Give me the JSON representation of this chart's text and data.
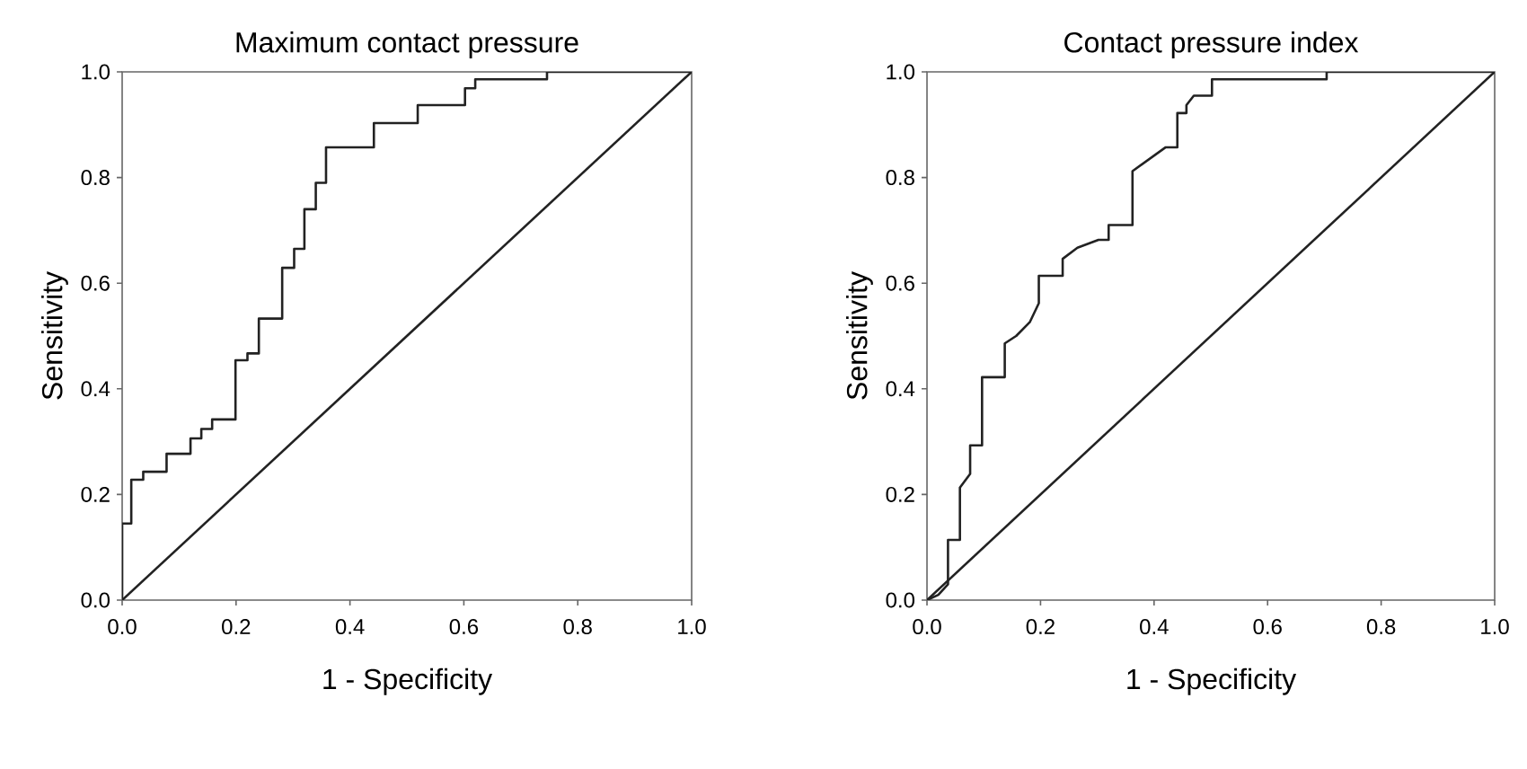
{
  "chart_data": [
    {
      "type": "line",
      "title": "Maximum contact pressure",
      "xlabel": "1 - Specificity",
      "ylabel": "Sensitivity",
      "xlim": [
        0,
        1
      ],
      "ylim": [
        0,
        1
      ],
      "xticks": [
        {
          "value": 0,
          "label": "0.0"
        },
        {
          "value": 0.2,
          "label": "0.2"
        },
        {
          "value": 0.4,
          "label": "0.4"
        },
        {
          "value": 0.6,
          "label": "0.6"
        },
        {
          "value": 0.8,
          "label": "0.8"
        },
        {
          "value": 1,
          "label": "1.0"
        }
      ],
      "yticks": [
        {
          "value": 0,
          "label": "0.0"
        },
        {
          "value": 0.2,
          "label": "0.2"
        },
        {
          "value": 0.4,
          "label": "0.4"
        },
        {
          "value": 0.6,
          "label": "0.6"
        },
        {
          "value": 0.8,
          "label": "0.8"
        },
        {
          "value": 1,
          "label": "1.0"
        }
      ],
      "grid": false,
      "marker": "none",
      "series": [
        {
          "type": "line",
          "color": "#222222",
          "x": [
            0,
            0,
            0.016,
            0.016,
            0.037,
            0.037,
            0.078,
            0.078,
            0.12,
            0.12,
            0.139,
            0.139,
            0.158,
            0.158,
            0.199,
            0.199,
            0.22,
            0.22,
            0.24,
            0.24,
            0.281,
            0.281,
            0.302,
            0.302,
            0.32,
            0.32,
            0.34,
            0.34,
            0.358,
            0.358,
            0.442,
            0.442,
            0.519,
            0.519,
            0.602,
            0.602,
            0.62,
            0.62,
            0.746,
            0.746,
            1
          ],
          "values": [
            0,
            0.145,
            0.145,
            0.228,
            0.228,
            0.243,
            0.243,
            0.277,
            0.277,
            0.306,
            0.306,
            0.324,
            0.324,
            0.342,
            0.342,
            0.454,
            0.454,
            0.467,
            0.467,
            0.533,
            0.533,
            0.629,
            0.629,
            0.665,
            0.665,
            0.74,
            0.74,
            0.79,
            0.79,
            0.857,
            0.857,
            0.903,
            0.903,
            0.937,
            0.937,
            0.969,
            0.969,
            0.986,
            0.986,
            1,
            1
          ]
        },
        {
          "color": "#222222",
          "x": [
            0,
            1
          ],
          "values": [
            0,
            1
          ]
        }
      ]
    },
    {
      "type": "line",
      "title": "Contact pressure index",
      "xlabel": "1 - Specificity",
      "ylabel": "Sensitivity",
      "xlim": [
        0,
        1
      ],
      "ylim": [
        0,
        1
      ],
      "xticks": [
        {
          "value": 0,
          "label": "0.0"
        },
        {
          "value": 0.2,
          "label": "0.2"
        },
        {
          "value": 0.4,
          "label": "0.4"
        },
        {
          "value": 0.6,
          "label": "0.6"
        },
        {
          "value": 0.8,
          "label": "0.8"
        },
        {
          "value": 1,
          "label": "1.0"
        }
      ],
      "yticks": [
        {
          "value": 0,
          "label": "0.0"
        },
        {
          "value": 0.2,
          "label": "0.2"
        },
        {
          "value": 0.4,
          "label": "0.4"
        },
        {
          "value": 0.6,
          "label": "0.6"
        },
        {
          "value": 0.8,
          "label": "0.8"
        },
        {
          "value": 1,
          "label": "1.0"
        }
      ],
      "grid": false,
      "marker": "none",
      "series": [
        {
          "type": "line",
          "color": "#222222",
          "x": [
            0,
            0.02,
            0.037,
            0.037,
            0.058,
            0.058,
            0.076,
            0.076,
            0.097,
            0.097,
            0.137,
            0.137,
            0.157,
            0.181,
            0.197,
            0.197,
            0.239,
            0.239,
            0.265,
            0.302,
            0.32,
            0.32,
            0.362,
            0.362,
            0.42,
            0.441,
            0.441,
            0.457,
            0.457,
            0.47,
            0.47,
            0.502,
            0.502,
            0.704,
            0.704,
            1
          ],
          "values": [
            0,
            0.01,
            0.03,
            0.114,
            0.114,
            0.213,
            0.239,
            0.293,
            0.293,
            0.422,
            0.422,
            0.486,
            0.5,
            0.526,
            0.562,
            0.614,
            0.614,
            0.646,
            0.667,
            0.682,
            0.682,
            0.71,
            0.71,
            0.812,
            0.857,
            0.857,
            0.922,
            0.922,
            0.937,
            0.955,
            0.955,
            0.955,
            0.986,
            0.986,
            1,
            1
          ]
        },
        {
          "color": "#222222",
          "x": [
            0,
            1
          ],
          "values": [
            0,
            1
          ]
        }
      ]
    }
  ]
}
